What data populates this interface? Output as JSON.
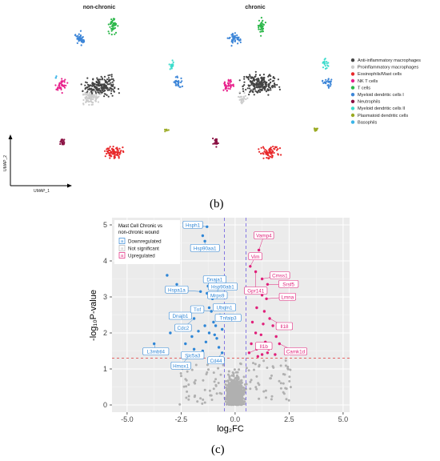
{
  "umap": {
    "panel_titles": [
      "non-chronic",
      "chronic"
    ],
    "xlabel": "UMAP_1",
    "ylabel": "UMAP_2",
    "legend": [
      {
        "label": "Anti-inflammatory macrophages",
        "color": "#444444"
      },
      {
        "label": "Proinflammatory macrophages",
        "color": "#cccccc"
      },
      {
        "label": "Eosinophils/Mast cells",
        "color": "#e8282a"
      },
      {
        "label": "NK T cells",
        "color": "#e8218c"
      },
      {
        "label": "T cells",
        "color": "#2db84b"
      },
      {
        "label": "Myeloid dendritic cells I",
        "color": "#3d86d8"
      },
      {
        "label": "Neutrophils",
        "color": "#8a1042"
      },
      {
        "label": "Myeloid dendritic cells II",
        "color": "#3ddccc"
      },
      {
        "label": "Plasmatoid dendritic cells",
        "color": "#9aaa22"
      },
      {
        "label": "Basophils",
        "color": "#3ab4e8"
      }
    ]
  },
  "caption_b": "(b)",
  "caption_c": "(c)",
  "chart_data": {
    "type": "scatter",
    "title": "",
    "xlabel": "log₂FC",
    "ylabel": "-log₁₀P-value",
    "xlim": [
      -5.7,
      5.3
    ],
    "ylim": [
      -0.2,
      5.2
    ],
    "xticks": [
      "-5.0",
      "-2.5",
      "0.0",
      "2.5",
      "5.0"
    ],
    "xtick_values": [
      -5,
      -2.5,
      0,
      2.5,
      5
    ],
    "yticks": [
      "0",
      "1",
      "2",
      "3",
      "4",
      "5"
    ],
    "ytick_values": [
      0,
      1,
      2,
      3,
      4,
      5
    ],
    "grid": true,
    "legend_title": [
      "Mast Cell Chronic vs",
      "non-chronic wound"
    ],
    "legend": [
      {
        "key": "a",
        "label": "Downregulated",
        "color": "#2f86d6"
      },
      {
        "key": "a",
        "label": "Not significant",
        "color": "#b5b5b5"
      },
      {
        "key": "a",
        "label": "Upregulated",
        "color": "#e0207a"
      }
    ],
    "colors": {
      "down": "#2f86d6",
      "ns": "#b0b0b0",
      "up": "#e0207a",
      "fc_line": "#6a5ae0",
      "p_line": "#e03a3a"
    },
    "thresholds": {
      "log2fc": [
        -0.5,
        0.5
      ],
      "neglog10p": 1.3
    },
    "series": [
      {
        "name": "Downregulated",
        "points": [
          [
            -1.3,
            4.95
          ],
          [
            -1.5,
            4.7
          ],
          [
            -1.4,
            4.55
          ],
          [
            -3.15,
            3.6
          ],
          [
            -2.7,
            3.35
          ],
          [
            -1.25,
            3.3
          ],
          [
            -1.6,
            3.15
          ],
          [
            -1.3,
            3.1
          ],
          [
            -0.95,
            3.1
          ],
          [
            -1.05,
            2.95
          ],
          [
            -1.2,
            2.7
          ],
          [
            -0.8,
            2.7
          ],
          [
            -1.95,
            2.6
          ],
          [
            -1.1,
            2.6
          ],
          [
            -0.7,
            2.5
          ],
          [
            -1.9,
            2.4
          ],
          [
            -1.0,
            2.3
          ],
          [
            -0.9,
            2.2
          ],
          [
            -1.4,
            2.2
          ],
          [
            -0.6,
            2.1
          ],
          [
            -1.7,
            2.05
          ],
          [
            -1.2,
            2.0
          ],
          [
            -0.95,
            1.95
          ],
          [
            -3.75,
            1.7
          ],
          [
            -2.0,
            1.9
          ],
          [
            -2.3,
            1.7
          ],
          [
            -1.9,
            1.55
          ],
          [
            -1.5,
            1.5
          ],
          [
            -0.75,
            1.6
          ],
          [
            -2.15,
            1.35
          ],
          [
            -0.6,
            1.45
          ],
          [
            -3.0,
            2.0
          ],
          [
            -1.35,
            1.75
          ],
          [
            -0.85,
            1.85
          ]
        ]
      },
      {
        "name": "Upregulated",
        "points": [
          [
            1.1,
            4.3
          ],
          [
            0.7,
            3.85
          ],
          [
            0.95,
            3.7
          ],
          [
            1.25,
            3.5
          ],
          [
            1.5,
            3.35
          ],
          [
            1.25,
            3.05
          ],
          [
            1.45,
            2.95
          ],
          [
            1.0,
            2.7
          ],
          [
            1.35,
            2.6
          ],
          [
            1.6,
            2.4
          ],
          [
            0.8,
            2.3
          ],
          [
            1.3,
            2.25
          ],
          [
            1.75,
            2.2
          ],
          [
            0.95,
            2.0
          ],
          [
            1.2,
            1.95
          ],
          [
            1.9,
            1.9
          ],
          [
            0.75,
            1.7
          ],
          [
            1.4,
            1.75
          ],
          [
            2.05,
            1.7
          ],
          [
            1.0,
            1.55
          ],
          [
            1.55,
            1.55
          ],
          [
            2.4,
            1.55
          ],
          [
            0.65,
            1.45
          ],
          [
            1.25,
            1.4
          ],
          [
            1.85,
            1.4
          ],
          [
            1.05,
            1.35
          ],
          [
            1.5,
            1.45
          ]
        ]
      },
      {
        "name": "Not significant",
        "points": []
      }
    ],
    "labels": [
      {
        "text": "Hsph1",
        "side": "down",
        "x": -1.3,
        "y": 4.95
      },
      {
        "text": "Hsp90aa1",
        "side": "down",
        "x": -1.4,
        "y": 4.55
      },
      {
        "text": "Hspa1a",
        "side": "down",
        "x": -1.6,
        "y": 3.15
      },
      {
        "text": "Dnaja1",
        "side": "down",
        "x": -1.25,
        "y": 3.3
      },
      {
        "text": "Hsp90ab1",
        "side": "down",
        "x": -0.95,
        "y": 3.1
      },
      {
        "text": "Mrps9",
        "side": "down",
        "x": -1.05,
        "y": 2.95
      },
      {
        "text": "Ubqln1",
        "side": "down",
        "x": -0.8,
        "y": 2.7
      },
      {
        "text": "Dnajb1",
        "side": "down",
        "x": -1.95,
        "y": 2.6
      },
      {
        "text": "Tnf",
        "side": "down",
        "x": -1.1,
        "y": 2.6
      },
      {
        "text": "Tnfaip3",
        "side": "down",
        "x": -0.7,
        "y": 2.5
      },
      {
        "text": "Cdc2",
        "side": "down",
        "x": -1.9,
        "y": 2.4
      },
      {
        "text": "Slc5a3",
        "side": "down",
        "x": -1.9,
        "y": 1.55
      },
      {
        "text": "Hmox1",
        "side": "down",
        "x": -2.15,
        "y": 1.35
      },
      {
        "text": "L3mbtl4",
        "side": "down",
        "x": -3.75,
        "y": 1.7
      },
      {
        "text": "Cd44",
        "side": "down",
        "x": -0.6,
        "y": 1.45
      },
      {
        "text": "Vamp4",
        "side": "up",
        "x": 1.1,
        "y": 4.3
      },
      {
        "text": "Vim",
        "side": "up",
        "x": 0.7,
        "y": 3.85
      },
      {
        "text": "Cmss1",
        "side": "up",
        "x": 1.25,
        "y": 3.5
      },
      {
        "text": "Gpr141",
        "side": "up",
        "x": 0.95,
        "y": 3.7
      },
      {
        "text": "Srsf5",
        "side": "up",
        "x": 1.5,
        "y": 3.35
      },
      {
        "text": "Lmna",
        "side": "up",
        "x": 1.45,
        "y": 2.95
      },
      {
        "text": "Il18",
        "side": "up",
        "x": 1.6,
        "y": 2.4
      },
      {
        "text": "Il1b",
        "side": "up",
        "x": 0.65,
        "y": 1.45
      },
      {
        "text": "Camk1d",
        "side": "up",
        "x": 2.05,
        "y": 1.7
      }
    ]
  }
}
